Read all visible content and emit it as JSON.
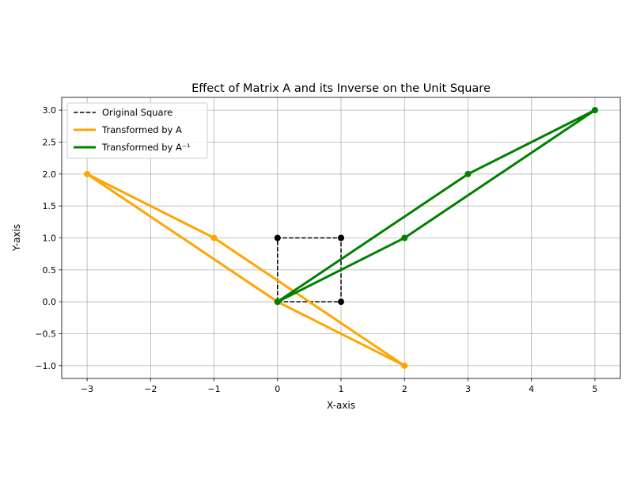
{
  "chart_data": {
    "type": "line",
    "title": "Effect of Matrix A and its Inverse on the Unit Square",
    "xlabel": "X-axis",
    "ylabel": "Y-axis",
    "xlim": [
      -3.4,
      5.4
    ],
    "ylim": [
      -1.2,
      3.2
    ],
    "x_ticks": [
      -3,
      -2,
      -1,
      0,
      1,
      2,
      3,
      4,
      5
    ],
    "x_tick_labels": [
      "−3",
      "−2",
      "−1",
      "0",
      "1",
      "2",
      "3",
      "4",
      "5"
    ],
    "y_ticks": [
      -1.0,
      -0.5,
      0.0,
      0.5,
      1.0,
      1.5,
      2.0,
      2.5,
      3.0
    ],
    "y_tick_labels": [
      "−1.0",
      "−0.5",
      "0.0",
      "0.5",
      "1.0",
      "1.5",
      "2.0",
      "2.5",
      "3.0"
    ],
    "grid": true,
    "legend_position": "top-left",
    "series": [
      {
        "name": "Original Square",
        "color": "#000000",
        "dashed": true,
        "points": [
          [
            0,
            0
          ],
          [
            1,
            0
          ],
          [
            1,
            1
          ],
          [
            0,
            1
          ],
          [
            0,
            0
          ]
        ]
      },
      {
        "name": "Transformed by A",
        "color": "#ffa500",
        "dashed": false,
        "points": [
          [
            0,
            0
          ],
          [
            2,
            -1
          ],
          [
            -1,
            1
          ],
          [
            -3,
            2
          ],
          [
            0,
            0
          ]
        ]
      },
      {
        "name": "Transformed by A⁻¹",
        "color": "#008000",
        "dashed": false,
        "points": [
          [
            0,
            0
          ],
          [
            2,
            1
          ],
          [
            5,
            3
          ],
          [
            3,
            2
          ],
          [
            0,
            0
          ]
        ]
      }
    ]
  }
}
